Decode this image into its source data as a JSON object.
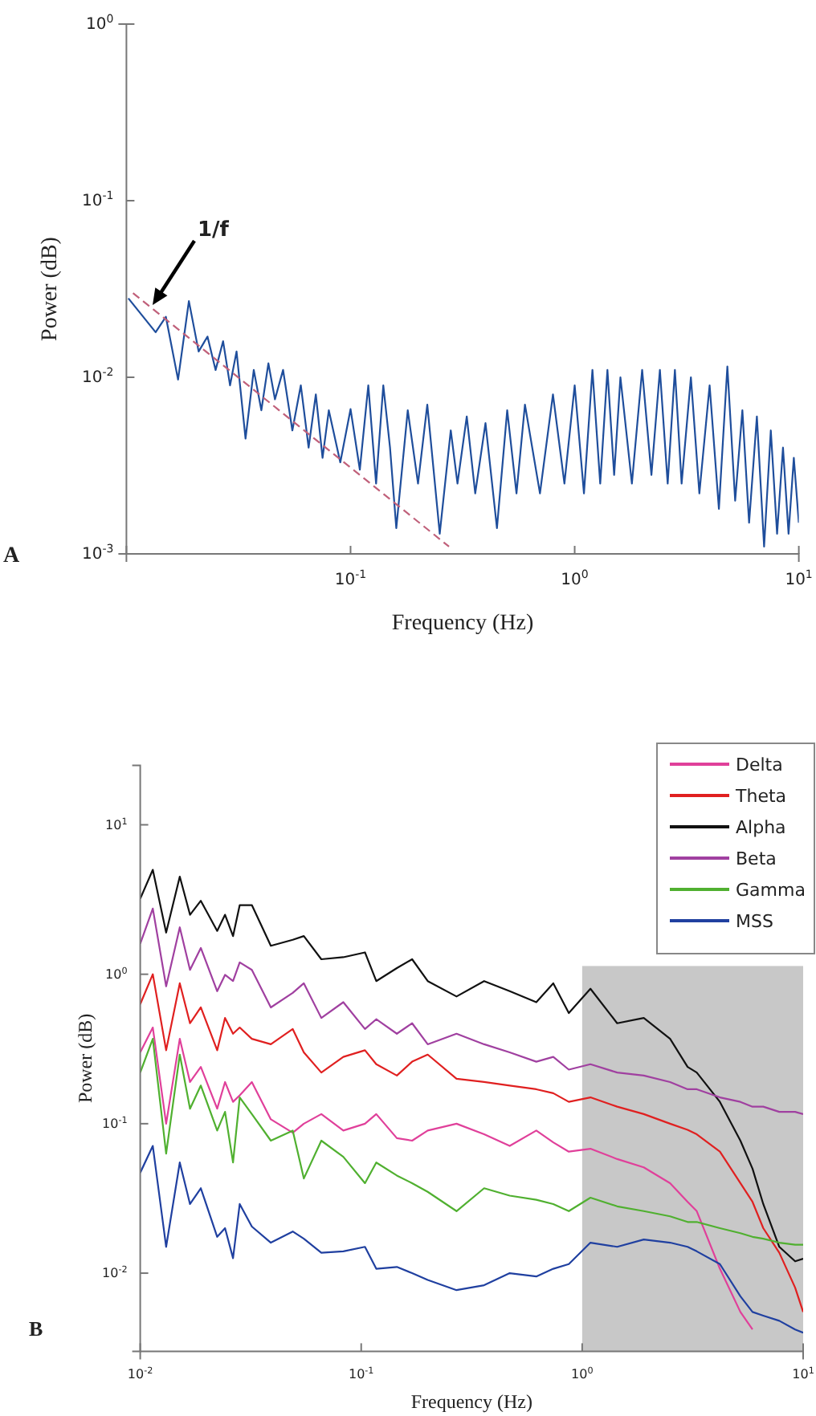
{
  "chart_data": [
    {
      "type": "line",
      "xlabel": "Frequency (Hz)",
      "ylabel": "Power (dB)",
      "log": "xy",
      "legend": false,
      "xlim": [
        0.01,
        10
      ],
      "xticks": [
        {
          "value": 0.01,
          "label": null
        },
        {
          "value": 0.1,
          "label": "10$^{-1}$"
        },
        {
          "value": 1,
          "label": "10$^{0}$"
        },
        {
          "value": 10,
          "label": "10$^{1}$"
        }
      ],
      "ylim": [
        0.001,
        1
      ],
      "yticks": [
        {
          "value": 0.001,
          "label": "10$^{-3}$"
        },
        {
          "value": 0.01,
          "label": "10$^{-2}$"
        },
        {
          "value": 0.1,
          "label": "10$^{-1}$"
        },
        {
          "value": 1,
          "label": "10$^{0}$"
        }
      ],
      "annotations": [
        "1/f",
        "A"
      ],
      "series": [
        {
          "color": "#1f4e9c",
          "x": [
            0.0102,
            0.0135,
            0.015,
            0.017,
            0.019,
            0.021,
            0.023,
            0.025,
            0.027,
            0.029,
            0.031,
            0.034,
            0.037,
            0.04,
            0.043,
            0.046,
            0.05,
            0.055,
            0.06,
            0.065,
            0.07,
            0.075,
            0.08,
            0.09,
            0.1,
            0.11,
            0.12,
            0.13,
            0.14,
            0.15,
            0.16,
            0.18,
            0.2,
            0.22,
            0.25,
            0.28,
            0.3,
            0.33,
            0.36,
            0.4,
            0.45,
            0.5,
            0.55,
            0.6,
            0.7,
            0.8,
            0.9,
            1.0,
            1.1,
            1.2,
            1.3,
            1.4,
            1.5,
            1.6,
            1.8,
            2.0,
            2.2,
            2.4,
            2.6,
            2.8,
            3.0,
            3.3,
            3.6,
            4.0,
            4.4,
            4.8,
            5.2,
            5.6,
            6.0,
            6.5,
            7.0,
            7.5,
            8.0,
            8.5,
            9.0,
            9.5,
            10
          ],
          "values": [
            0.028,
            0.018,
            0.022,
            0.0097,
            0.027,
            0.014,
            0.017,
            0.011,
            0.016,
            0.009,
            0.014,
            0.0045,
            0.011,
            0.0065,
            0.012,
            0.0075,
            0.011,
            0.005,
            0.009,
            0.004,
            0.008,
            0.0035,
            0.0065,
            0.0033,
            0.0066,
            0.003,
            0.009,
            0.0025,
            0.009,
            0.004,
            0.0014,
            0.0065,
            0.0025,
            0.007,
            0.0013,
            0.005,
            0.0025,
            0.006,
            0.0022,
            0.0055,
            0.0014,
            0.0065,
            0.0022,
            0.007,
            0.0022,
            0.008,
            0.0025,
            0.009,
            0.0022,
            0.011,
            0.0025,
            0.011,
            0.0028,
            0.01,
            0.0025,
            0.011,
            0.0028,
            0.011,
            0.0025,
            0.011,
            0.0025,
            0.01,
            0.0022,
            0.009,
            0.0018,
            0.0115,
            0.002,
            0.0065,
            0.0015,
            0.006,
            0.0011,
            0.005,
            0.0013,
            0.004,
            0.0013,
            0.0035,
            0.0015
          ]
        },
        {
          "color": "#c0607a",
          "line_style": "dashed",
          "x": [
            0.0107,
            0.275
          ],
          "values": [
            0.03,
            0.0011
          ]
        }
      ]
    },
    {
      "type": "line",
      "xlabel": "Frequency (Hz)",
      "ylabel": "Power (dB)",
      "log": "xy",
      "legend": "top right",
      "xlim": [
        0.01,
        10
      ],
      "xticks": [
        {
          "value": 0.01,
          "label": "10$^{-2}$"
        },
        {
          "value": 0.1,
          "label": "10$^{-1}$"
        },
        {
          "value": 1,
          "label": "10$^{0}$"
        },
        {
          "value": 10,
          "label": "10$^{1}$"
        }
      ],
      "ylim": [
        0.003,
        25
      ],
      "yticks": [
        {
          "value": 0.01,
          "label": "10$^{-2}$"
        },
        {
          "value": 0.1,
          "label": "10$^{-1}$"
        },
        {
          "value": 1,
          "label": "10$^{0}$"
        },
        {
          "value": 10,
          "label": "10$^{1}$"
        }
      ],
      "annotations": [
        "B"
      ],
      "bands": [
        {
          "axis": "x",
          "from": 1,
          "to": 10,
          "color": "#c8c8c8"
        }
      ],
      "x": [
        0.01,
        0.0114,
        0.0131,
        0.0151,
        0.0168,
        0.0188,
        0.0223,
        0.0242,
        0.0263,
        0.0282,
        0.032,
        0.039,
        0.049,
        0.055,
        0.066,
        0.083,
        0.104,
        0.117,
        0.145,
        0.17,
        0.2,
        0.27,
        0.36,
        0.47,
        0.62,
        0.74,
        0.87,
        1.09,
        1.44,
        1.9,
        2.5,
        3.0,
        3.3,
        4.2,
        5.2,
        5.9,
        6.6,
        7.8,
        9.2,
        10
      ],
      "series": [
        {
          "name": "Delta",
          "color": "#e0409a",
          "values": [
            0.3,
            0.44,
            0.1,
            0.37,
            0.19,
            0.24,
            0.126,
            0.19,
            0.14,
            0.155,
            0.19,
            0.107,
            0.087,
            0.1,
            0.116,
            0.09,
            0.1,
            0.116,
            0.08,
            0.077,
            0.09,
            0.1,
            0.085,
            0.071,
            0.09,
            0.075,
            0.065,
            0.068,
            0.058,
            0.051,
            0.04,
            0.03,
            0.026,
            0.0107,
            0.0055,
            0.0042,
            null,
            null,
            null,
            null
          ]
        },
        {
          "name": "Theta",
          "color": "#e02020",
          "values": [
            0.63,
            1.0,
            0.31,
            0.87,
            0.47,
            0.6,
            0.31,
            0.51,
            0.4,
            0.44,
            0.37,
            0.34,
            0.43,
            0.3,
            0.22,
            0.28,
            0.31,
            0.25,
            0.21,
            0.26,
            0.29,
            0.2,
            0.19,
            0.18,
            0.17,
            0.16,
            0.14,
            0.15,
            0.13,
            0.116,
            0.1,
            0.091,
            0.085,
            0.065,
            0.04,
            0.03,
            0.02,
            0.0137,
            0.008,
            0.0055
          ]
        },
        {
          "name": "Alpha",
          "color": "#111111",
          "values": [
            3.2,
            5.0,
            1.9,
            4.5,
            2.5,
            3.1,
            1.95,
            2.5,
            1.8,
            2.9,
            2.9,
            1.55,
            1.7,
            1.8,
            1.26,
            1.3,
            1.4,
            0.9,
            1.1,
            1.26,
            0.9,
            0.71,
            0.9,
            0.77,
            0.65,
            0.87,
            0.55,
            0.8,
            0.47,
            0.51,
            0.37,
            0.24,
            0.22,
            0.14,
            0.077,
            0.05,
            0.029,
            0.015,
            0.012,
            0.0125
          ]
        },
        {
          "name": "Beta",
          "color": "#a040a0",
          "values": [
            1.6,
            2.75,
            0.83,
            2.06,
            1.07,
            1.5,
            0.77,
            0.99,
            0.9,
            1.2,
            1.07,
            0.6,
            0.75,
            0.87,
            0.51,
            0.65,
            0.43,
            0.5,
            0.4,
            0.47,
            0.34,
            0.4,
            0.34,
            0.3,
            0.26,
            0.28,
            0.23,
            0.25,
            0.22,
            0.21,
            0.19,
            0.17,
            0.17,
            0.15,
            0.14,
            0.13,
            0.13,
            0.12,
            0.12,
            0.116
          ]
        },
        {
          "name": "Gamma",
          "color": "#50b030",
          "values": [
            0.22,
            0.37,
            0.063,
            0.29,
            0.126,
            0.18,
            0.09,
            0.12,
            0.055,
            0.15,
            0.116,
            0.077,
            0.09,
            0.043,
            0.077,
            0.06,
            0.04,
            0.055,
            0.045,
            0.04,
            0.035,
            0.026,
            0.037,
            0.033,
            0.031,
            0.029,
            0.026,
            0.032,
            0.028,
            0.026,
            0.024,
            0.022,
            0.022,
            0.02,
            0.0185,
            0.0175,
            0.017,
            0.016,
            0.0155,
            0.0155
          ]
        },
        {
          "name": "MSS",
          "color": "#2040a0",
          "values": [
            0.047,
            0.071,
            0.015,
            0.055,
            0.029,
            0.037,
            0.0175,
            0.02,
            0.0126,
            0.029,
            0.0205,
            0.016,
            0.019,
            0.017,
            0.0137,
            0.014,
            0.015,
            0.0107,
            0.011,
            0.01,
            0.009,
            0.0077,
            0.0083,
            0.01,
            0.0095,
            0.0107,
            0.0115,
            0.016,
            0.015,
            0.0168,
            0.016,
            0.015,
            0.014,
            0.0115,
            0.007,
            0.0055,
            0.0052,
            0.0048,
            0.0042,
            0.004
          ]
        }
      ]
    }
  ]
}
